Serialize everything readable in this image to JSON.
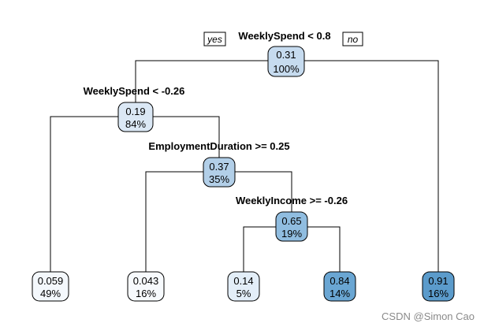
{
  "tree": {
    "root": {
      "split": "WeeklySpend < 0.8",
      "value": "0.31",
      "percent": "100%",
      "fill": "#c6dbef",
      "yes_label": "yes",
      "no_label": "no"
    },
    "internal": [
      {
        "id": "n2",
        "split": "WeeklySpend < -0.26",
        "value": "0.19",
        "percent": "84%",
        "fill": "#dbe8f5"
      },
      {
        "id": "n5",
        "split": "EmploymentDuration >= 0.25",
        "value": "0.37",
        "percent": "35%",
        "fill": "#b2cfe8"
      },
      {
        "id": "n11",
        "split": "WeeklyIncome >= -0.26",
        "value": "0.65",
        "percent": "19%",
        "fill": "#90bde0"
      }
    ],
    "leaves": [
      {
        "id": "l1",
        "value": "0.059",
        "percent": "49%",
        "fill": "#f4f8fc"
      },
      {
        "id": "l2",
        "value": "0.043",
        "percent": "16%",
        "fill": "#f7fafd"
      },
      {
        "id": "l3",
        "value": "0.14",
        "percent": "5%",
        "fill": "#e3eef8"
      },
      {
        "id": "l4",
        "value": "0.84",
        "percent": "14%",
        "fill": "#6aa6d3"
      },
      {
        "id": "l5",
        "value": "0.91",
        "percent": "16%",
        "fill": "#5b9bcb"
      }
    ]
  },
  "watermark": "CSDN @Simon Cao"
}
